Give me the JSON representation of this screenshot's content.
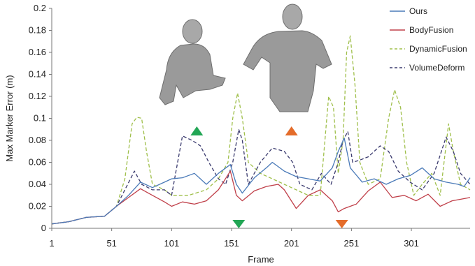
{
  "chart_data": {
    "type": "line",
    "title": "",
    "xlabel": "Frame",
    "ylabel": "Max Marker Error (m)",
    "xlim": [
      1,
      350
    ],
    "ylim": [
      0,
      0.2
    ],
    "x_ticks": [
      "1",
      "51",
      "101",
      "151",
      "201",
      "251",
      "301"
    ],
    "y_ticks": [
      "0",
      "0.02",
      "0.04",
      "0.06",
      "0.08",
      "0.1",
      "0.12",
      "0.14",
      "0.16",
      "0.18",
      "0.2"
    ],
    "grid": false,
    "legend_position": "top-right",
    "series": [
      {
        "name": "Ours",
        "color": "#4a7ab8",
        "dash": "solid",
        "points": [
          [
            1,
            0.004
          ],
          [
            15,
            0.006
          ],
          [
            30,
            0.01
          ],
          [
            45,
            0.011
          ],
          [
            55,
            0.02
          ],
          [
            65,
            0.03
          ],
          [
            75,
            0.042
          ],
          [
            85,
            0.037
          ],
          [
            95,
            0.042
          ],
          [
            101,
            0.045
          ],
          [
            110,
            0.046
          ],
          [
            120,
            0.05
          ],
          [
            130,
            0.04
          ],
          [
            140,
            0.05
          ],
          [
            150,
            0.058
          ],
          [
            155,
            0.04
          ],
          [
            160,
            0.032
          ],
          [
            170,
            0.046
          ],
          [
            180,
            0.055
          ],
          [
            185,
            0.06
          ],
          [
            195,
            0.052
          ],
          [
            205,
            0.047
          ],
          [
            215,
            0.045
          ],
          [
            225,
            0.043
          ],
          [
            235,
            0.055
          ],
          [
            240,
            0.07
          ],
          [
            245,
            0.082
          ],
          [
            250,
            0.055
          ],
          [
            260,
            0.042
          ],
          [
            270,
            0.045
          ],
          [
            280,
            0.04
          ],
          [
            290,
            0.045
          ],
          [
            300,
            0.048
          ],
          [
            310,
            0.055
          ],
          [
            320,
            0.045
          ],
          [
            330,
            0.042
          ],
          [
            340,
            0.04
          ],
          [
            345,
            0.038
          ],
          [
            350,
            0.046
          ]
        ]
      },
      {
        "name": "BodyFusion",
        "color": "#c0404a",
        "dash": "solid",
        "points": [
          [
            1,
            0.004
          ],
          [
            15,
            0.006
          ],
          [
            30,
            0.01
          ],
          [
            45,
            0.011
          ],
          [
            55,
            0.02
          ],
          [
            65,
            0.028
          ],
          [
            75,
            0.036
          ],
          [
            85,
            0.03
          ],
          [
            95,
            0.024
          ],
          [
            101,
            0.02
          ],
          [
            110,
            0.024
          ],
          [
            120,
            0.022
          ],
          [
            130,
            0.025
          ],
          [
            140,
            0.035
          ],
          [
            150,
            0.052
          ],
          [
            155,
            0.03
          ],
          [
            160,
            0.025
          ],
          [
            170,
            0.034
          ],
          [
            180,
            0.038
          ],
          [
            190,
            0.04
          ],
          [
            195,
            0.035
          ],
          [
            205,
            0.018
          ],
          [
            215,
            0.03
          ],
          [
            225,
            0.035
          ],
          [
            235,
            0.025
          ],
          [
            240,
            0.015
          ],
          [
            245,
            0.018
          ],
          [
            255,
            0.022
          ],
          [
            265,
            0.034
          ],
          [
            275,
            0.042
          ],
          [
            285,
            0.028
          ],
          [
            295,
            0.03
          ],
          [
            305,
            0.025
          ],
          [
            315,
            0.031
          ],
          [
            325,
            0.02
          ],
          [
            335,
            0.025
          ],
          [
            345,
            0.027
          ],
          [
            350,
            0.028
          ]
        ]
      },
      {
        "name": "DynamicFusion",
        "color": "#9fbf4a",
        "dash": "dashed",
        "points": [
          [
            1,
            0.004
          ],
          [
            15,
            0.006
          ],
          [
            30,
            0.01
          ],
          [
            45,
            0.011
          ],
          [
            55,
            0.02
          ],
          [
            62,
            0.045
          ],
          [
            68,
            0.095
          ],
          [
            72,
            0.101
          ],
          [
            76,
            0.1
          ],
          [
            80,
            0.07
          ],
          [
            85,
            0.04
          ],
          [
            95,
            0.035
          ],
          [
            101,
            0.03
          ],
          [
            115,
            0.03
          ],
          [
            130,
            0.035
          ],
          [
            140,
            0.045
          ],
          [
            148,
            0.06
          ],
          [
            152,
            0.1
          ],
          [
            156,
            0.123
          ],
          [
            160,
            0.1
          ],
          [
            165,
            0.06
          ],
          [
            175,
            0.05
          ],
          [
            185,
            0.045
          ],
          [
            195,
            0.04
          ],
          [
            205,
            0.035
          ],
          [
            215,
            0.03
          ],
          [
            225,
            0.03
          ],
          [
            232,
            0.12
          ],
          [
            236,
            0.11
          ],
          [
            240,
            0.05
          ],
          [
            244,
            0.08
          ],
          [
            247,
            0.16
          ],
          [
            250,
            0.175
          ],
          [
            254,
            0.13
          ],
          [
            258,
            0.06
          ],
          [
            265,
            0.04
          ],
          [
            275,
            0.045
          ],
          [
            282,
            0.1
          ],
          [
            287,
            0.126
          ],
          [
            292,
            0.11
          ],
          [
            297,
            0.06
          ],
          [
            303,
            0.03
          ],
          [
            310,
            0.04
          ],
          [
            318,
            0.05
          ],
          [
            325,
            0.03
          ],
          [
            332,
            0.095
          ],
          [
            336,
            0.07
          ],
          [
            342,
            0.04
          ],
          [
            350,
            0.035
          ]
        ]
      },
      {
        "name": "VolumeDeform",
        "color": "#3a3a6e",
        "dash": "dashed",
        "points": [
          [
            1,
            0.004
          ],
          [
            15,
            0.006
          ],
          [
            30,
            0.01
          ],
          [
            45,
            0.011
          ],
          [
            55,
            0.02
          ],
          [
            62,
            0.035
          ],
          [
            70,
            0.052
          ],
          [
            76,
            0.04
          ],
          [
            85,
            0.035
          ],
          [
            95,
            0.035
          ],
          [
            101,
            0.03
          ],
          [
            106,
            0.06
          ],
          [
            110,
            0.084
          ],
          [
            118,
            0.08
          ],
          [
            125,
            0.075
          ],
          [
            132,
            0.06
          ],
          [
            140,
            0.045
          ],
          [
            146,
            0.04
          ],
          [
            152,
            0.06
          ],
          [
            157,
            0.09
          ],
          [
            160,
            0.08
          ],
          [
            165,
            0.04
          ],
          [
            175,
            0.06
          ],
          [
            185,
            0.073
          ],
          [
            195,
            0.07
          ],
          [
            202,
            0.06
          ],
          [
            208,
            0.04
          ],
          [
            218,
            0.035
          ],
          [
            226,
            0.05
          ],
          [
            234,
            0.04
          ],
          [
            240,
            0.06
          ],
          [
            244,
            0.08
          ],
          [
            248,
            0.088
          ],
          [
            252,
            0.06
          ],
          [
            258,
            0.062
          ],
          [
            265,
            0.065
          ],
          [
            275,
            0.075
          ],
          [
            282,
            0.07
          ],
          [
            290,
            0.052
          ],
          [
            300,
            0.042
          ],
          [
            310,
            0.035
          ],
          [
            320,
            0.05
          ],
          [
            330,
            0.083
          ],
          [
            336,
            0.07
          ],
          [
            342,
            0.05
          ],
          [
            350,
            0.04
          ]
        ]
      }
    ],
    "annotations": [
      {
        "shape": "triangle-up",
        "color": "#22a655",
        "x": 122
      },
      {
        "shape": "triangle-up",
        "color": "#e46c2a",
        "x": 201
      },
      {
        "shape": "triangle-down",
        "color": "#22a655",
        "x": 157
      },
      {
        "shape": "triangle-down",
        "color": "#e46c2a",
        "x": 243
      }
    ],
    "insets": [
      {
        "name": "human-body-reconstruction-1",
        "color": "#9a9a9a"
      },
      {
        "name": "human-body-reconstruction-2",
        "color": "#9a9a9a"
      }
    ]
  }
}
